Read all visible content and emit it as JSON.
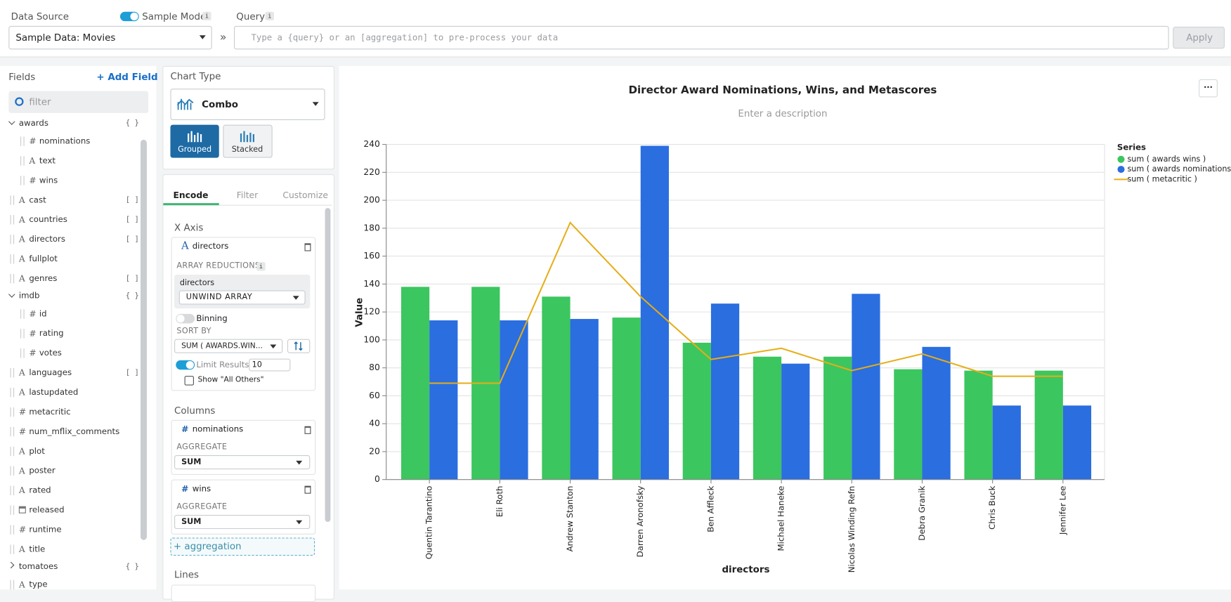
{
  "toolbar": {
    "data_source_label": "Data Source",
    "sample_mode": "Sample Mode",
    "info": "i",
    "query_label": "Query",
    "data_source_value": "Sample Data: Movies",
    "separator": "»",
    "query_placeholder": "Type a {query} or an [aggregation] to pre-process your data",
    "apply": "Apply"
  },
  "fields_panel": {
    "title": "Fields",
    "add_field": "+ Add Field",
    "filter_placeholder": "filter",
    "fields": [
      {
        "label": "awards",
        "icon": "",
        "suffix": "{ }",
        "depth": 0,
        "expanded": true
      },
      {
        "label": "nominations",
        "icon": "#",
        "suffix": "",
        "depth": 1
      },
      {
        "label": "text",
        "icon": "A",
        "suffix": "",
        "depth": 1
      },
      {
        "label": "wins",
        "icon": "#",
        "suffix": "",
        "depth": 1
      },
      {
        "label": "cast",
        "icon": "A",
        "suffix": "[ ]",
        "depth": 0
      },
      {
        "label": "countries",
        "icon": "A",
        "suffix": "[ ]",
        "depth": 0
      },
      {
        "label": "directors",
        "icon": "A",
        "suffix": "[ ]",
        "depth": 0
      },
      {
        "label": "fullplot",
        "icon": "A",
        "suffix": "",
        "depth": 0
      },
      {
        "label": "genres",
        "icon": "A",
        "suffix": "[ ]",
        "depth": 0
      },
      {
        "label": "imdb",
        "icon": "",
        "suffix": "{ }",
        "depth": 0,
        "expanded": true
      },
      {
        "label": "id",
        "icon": "#",
        "suffix": "",
        "depth": 1
      },
      {
        "label": "rating",
        "icon": "#",
        "suffix": "",
        "depth": 1
      },
      {
        "label": "votes",
        "icon": "#",
        "suffix": "",
        "depth": 1
      },
      {
        "label": "languages",
        "icon": "A",
        "suffix": "[ ]",
        "depth": 0
      },
      {
        "label": "lastupdated",
        "icon": "A",
        "suffix": "",
        "depth": 0
      },
      {
        "label": "metacritic",
        "icon": "#",
        "suffix": "",
        "depth": 0
      },
      {
        "label": "num_mflix_comments",
        "icon": "#",
        "suffix": "",
        "depth": 0
      },
      {
        "label": "plot",
        "icon": "A",
        "suffix": "",
        "depth": 0
      },
      {
        "label": "poster",
        "icon": "A",
        "suffix": "",
        "depth": 0
      },
      {
        "label": "rated",
        "icon": "A",
        "suffix": "",
        "depth": 0
      },
      {
        "label": "released",
        "icon": "",
        "suffix": "",
        "depth": 0,
        "date": true
      },
      {
        "label": "runtime",
        "icon": "#",
        "suffix": "",
        "depth": 0
      },
      {
        "label": "title",
        "icon": "A",
        "suffix": "",
        "depth": 0
      },
      {
        "label": "tomatoes",
        "icon": "",
        "suffix": "{ }",
        "depth": 0,
        "expanded": false
      },
      {
        "label": "type",
        "icon": "A",
        "suffix": "",
        "depth": 0
      }
    ]
  },
  "encode_panel": {
    "chart_type_label": "Chart Type",
    "chart_type": "Combo",
    "grouped": "Grouped",
    "stacked": "Stacked",
    "tabs": [
      "Encode",
      "Filter",
      "Customize"
    ],
    "x_axis": "X Axis",
    "x_field": "directors",
    "x_icon": "A",
    "array_reductions": "ARRAY REDUCTIONS",
    "reduction_field": "directors",
    "reduction": "UNWIND ARRAY",
    "binning": "Binning",
    "sort_by": "SORT BY",
    "sort_value": "SUM ( AWARDS.WIN...",
    "limit_results": "Limit Results",
    "limit_value": "10",
    "show_all_others": "Show \"All Others\"",
    "columns": "Columns",
    "column_items": [
      {
        "icon": "#",
        "field": "nominations",
        "aggregate_label": "AGGREGATE",
        "aggregate": "SUM"
      },
      {
        "icon": "#",
        "field": "wins",
        "aggregate_label": "AGGREGATE",
        "aggregate": "SUM"
      }
    ],
    "add_aggregation": "+ aggregation",
    "lines": "Lines"
  },
  "chart_menu": "···",
  "chart_data": {
    "type": "combo",
    "title": "Director Award Nominations, Wins, and Metascores",
    "subtitle": "Enter a description",
    "x_label": "directors",
    "y_label": "Value",
    "legend_title": "Series",
    "legend": "right",
    "grid": true,
    "categories": [
      "Quentin Tarantino",
      "Eli Roth",
      "Andrew Stanton",
      "Darren Aronofsky",
      "Ben Affleck",
      "Michael Haneke",
      "Nicolas Winding Refn",
      "Debra Granik",
      "Chris Buck",
      "Jennifer Lee"
    ],
    "series": [
      {
        "name": "sum ( awards wins )",
        "type": "bar",
        "color": "#3cc65f",
        "values": [
          138,
          138,
          131,
          116,
          98,
          88,
          88,
          79,
          78,
          78
        ]
      },
      {
        "name": "sum ( awards nominations )",
        "type": "bar",
        "color": "#2a6ee0",
        "values": [
          114,
          114,
          115,
          239,
          126,
          83,
          133,
          95,
          53,
          53
        ]
      },
      {
        "name": "sum ( metacritic )",
        "type": "line",
        "color": "#e6ad16",
        "values": [
          69,
          69,
          184,
          131,
          86,
          94,
          78,
          90,
          74,
          74
        ]
      }
    ],
    "ylim": [
      0,
      240
    ],
    "yticks": [
      0,
      20,
      40,
      60,
      80,
      100,
      120,
      140,
      160,
      180,
      200,
      220,
      240
    ]
  }
}
